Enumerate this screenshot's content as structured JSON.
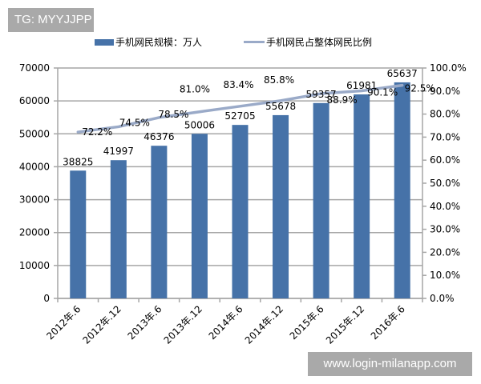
{
  "watermarks": {
    "top_left": "TG: MYYJJPP",
    "bottom_right": "www.login-milanapp.com"
  },
  "legend": {
    "bar_label": "手机网民规模：万人",
    "line_label": "手机网民占整体网民比例"
  },
  "colors": {
    "bar": "#4672a8",
    "line": "#9aaac8",
    "grid": "#a6a6a6",
    "axis": "#a6a6a6",
    "watermark_bg": "#a9a9a9"
  },
  "chart_data": {
    "type": "bar+line",
    "title": "",
    "categories": [
      "2012年.6",
      "2012年.12",
      "2013年.6",
      "2013年.12",
      "2014年.6",
      "2014年.12",
      "2015年.6",
      "2015年.12",
      "2016年.6"
    ],
    "series": [
      {
        "name": "手机网民规模：万人",
        "type": "bar",
        "axis": "left",
        "values": [
          38825,
          41997,
          46376,
          50006,
          52705,
          55678,
          59357,
          61981,
          65637
        ]
      },
      {
        "name": "手机网民占整体网民比例",
        "type": "line",
        "axis": "right",
        "values": [
          72.2,
          74.5,
          78.5,
          81.0,
          83.4,
          85.8,
          88.9,
          90.1,
          92.5
        ],
        "labels": [
          "72.2%",
          "74.5%",
          "78.5%",
          "81.0%",
          "83.4%",
          "85.8%",
          "88.9%",
          "90.1%",
          "92.5%"
        ]
      }
    ],
    "y_left": {
      "min": 0,
      "max": 70000,
      "step": 10000,
      "ticks": [
        "0",
        "10000",
        "20000",
        "30000",
        "40000",
        "50000",
        "60000",
        "70000"
      ]
    },
    "y_right": {
      "min": 0,
      "max": 100,
      "step": 10,
      "ticks": [
        "0.0%",
        "10.0%",
        "20.0%",
        "30.0%",
        "40.0%",
        "50.0%",
        "60.0%",
        "70.0%",
        "80.0%",
        "90.0%",
        "100.0%"
      ]
    },
    "xlabel": "",
    "ylabel": "",
    "grid": true,
    "legend_position": "top"
  }
}
